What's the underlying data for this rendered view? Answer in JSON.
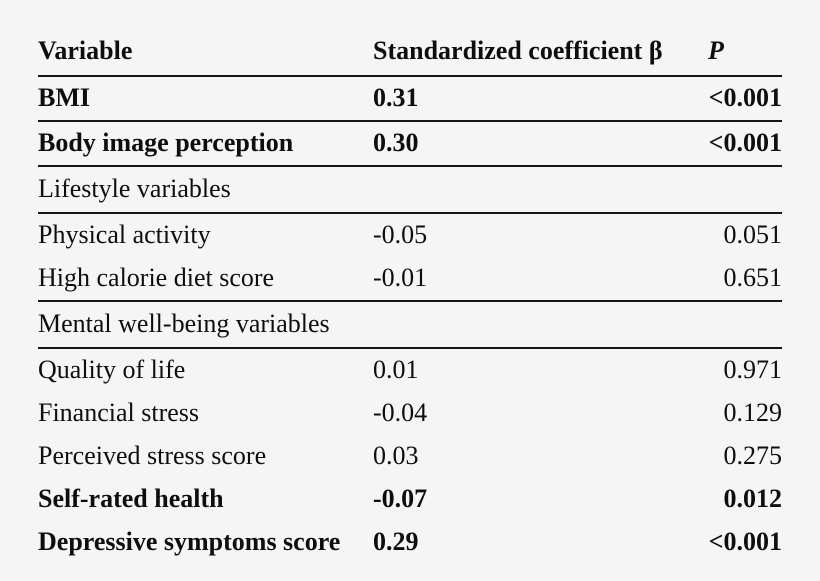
{
  "page": {
    "background_color": "#f5f5f5",
    "rule_color": "#161616",
    "text_color": "#0e0e0e"
  },
  "table": {
    "columns": {
      "variable": "Variable",
      "beta": "Standardized coefficient β",
      "p": "P"
    },
    "rows": [
      {
        "variable": "BMI",
        "beta": "0.31",
        "p": "<0.001",
        "bold": true
      },
      {
        "variable": "Body image perception",
        "beta": "0.30",
        "p": "<0.001",
        "bold": true
      },
      {
        "variable": "Lifestyle variables",
        "beta": "",
        "p": "",
        "section": true
      },
      {
        "variable": "Physical activity",
        "beta": "-0.05",
        "p": "0.051",
        "bold": false
      },
      {
        "variable": "High calorie diet score",
        "beta": "-0.01",
        "p": "0.651",
        "bold": false
      },
      {
        "variable": "Mental well-being variables",
        "beta": "",
        "p": "",
        "section": true
      },
      {
        "variable": "Quality of life",
        "beta": "0.01",
        "p": "0.971",
        "bold": false
      },
      {
        "variable": "Financial stress",
        "beta": "-0.04",
        "p": "0.129",
        "bold": false
      },
      {
        "variable": "Perceived stress score",
        "beta": "0.03",
        "p": "0.275",
        "bold": false
      },
      {
        "variable": "Self-rated health",
        "beta": "-0.07",
        "p": "0.012",
        "bold": true
      },
      {
        "variable": "Depressive symptoms score",
        "beta": "0.29",
        "p": "<0.001",
        "bold": true
      }
    ]
  }
}
